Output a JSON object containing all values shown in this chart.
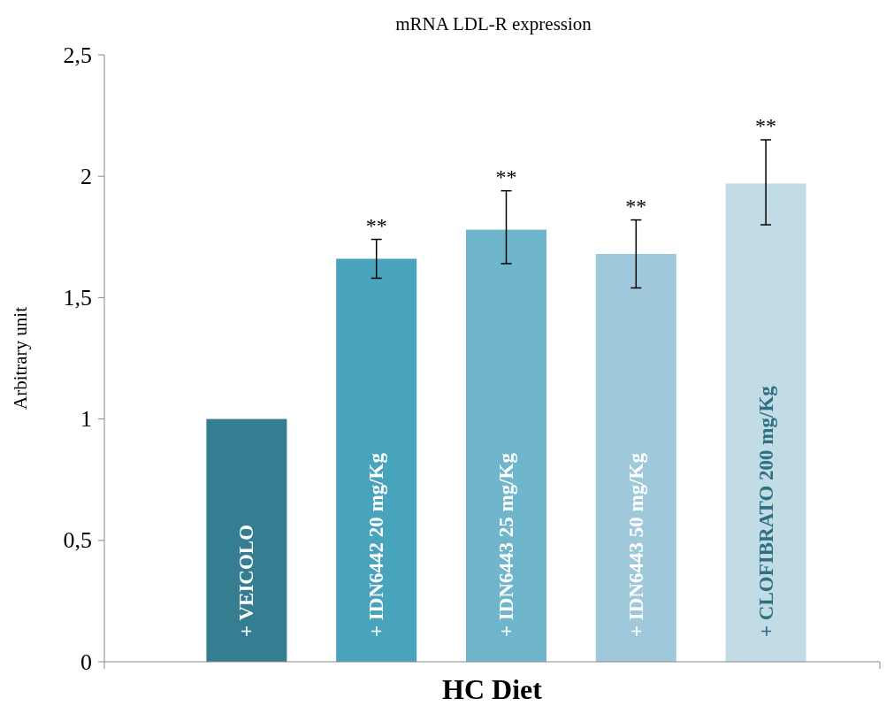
{
  "chart_data": {
    "type": "bar",
    "title": "mRNA LDL-R expression",
    "xlabel": "HC Diet",
    "ylabel": "Arbitrary unit",
    "categories": [
      "+ VEICOLO",
      "+ IDN6442 20 mg/Kg",
      "+ IDN6443 25 mg/Kg",
      "+ IDN6443 50 mg/Kg",
      "+ CLOFIBRATO 200 mg/Kg"
    ],
    "values": [
      1.0,
      1.66,
      1.78,
      1.68,
      1.97
    ],
    "colors": [
      "#357d91",
      "#48a3bd",
      "#6fb5cc",
      "#9fc9da",
      "#c2dce6"
    ],
    "errors": [
      null,
      [
        1.58,
        1.74
      ],
      [
        1.64,
        1.94
      ],
      [
        1.54,
        1.82
      ],
      [
        1.8,
        2.15
      ]
    ],
    "ylim": [
      0,
      2.5
    ],
    "yticks": [
      0,
      {
        "value": 0.5,
        "label": "0,5"
      },
      1,
      {
        "value": 1.5,
        "label": "1,5"
      },
      2,
      {
        "value": 2.5,
        "label": "2,5"
      }
    ],
    "annotations": [
      {
        "text": "**",
        "x": "+ IDN6442 20 mg/Kg",
        "y": 1.74
      },
      {
        "text": "**",
        "x": "+ IDN6443 25 mg/Kg",
        "y": 1.94
      },
      {
        "text": "**",
        "x": "+ IDN6443 50 mg/Kg",
        "y": 1.82
      },
      {
        "text": "**",
        "x": "+ CLOFIBRATO 200 mg/Kg",
        "y": 2.15
      }
    ],
    "grid": false
  }
}
